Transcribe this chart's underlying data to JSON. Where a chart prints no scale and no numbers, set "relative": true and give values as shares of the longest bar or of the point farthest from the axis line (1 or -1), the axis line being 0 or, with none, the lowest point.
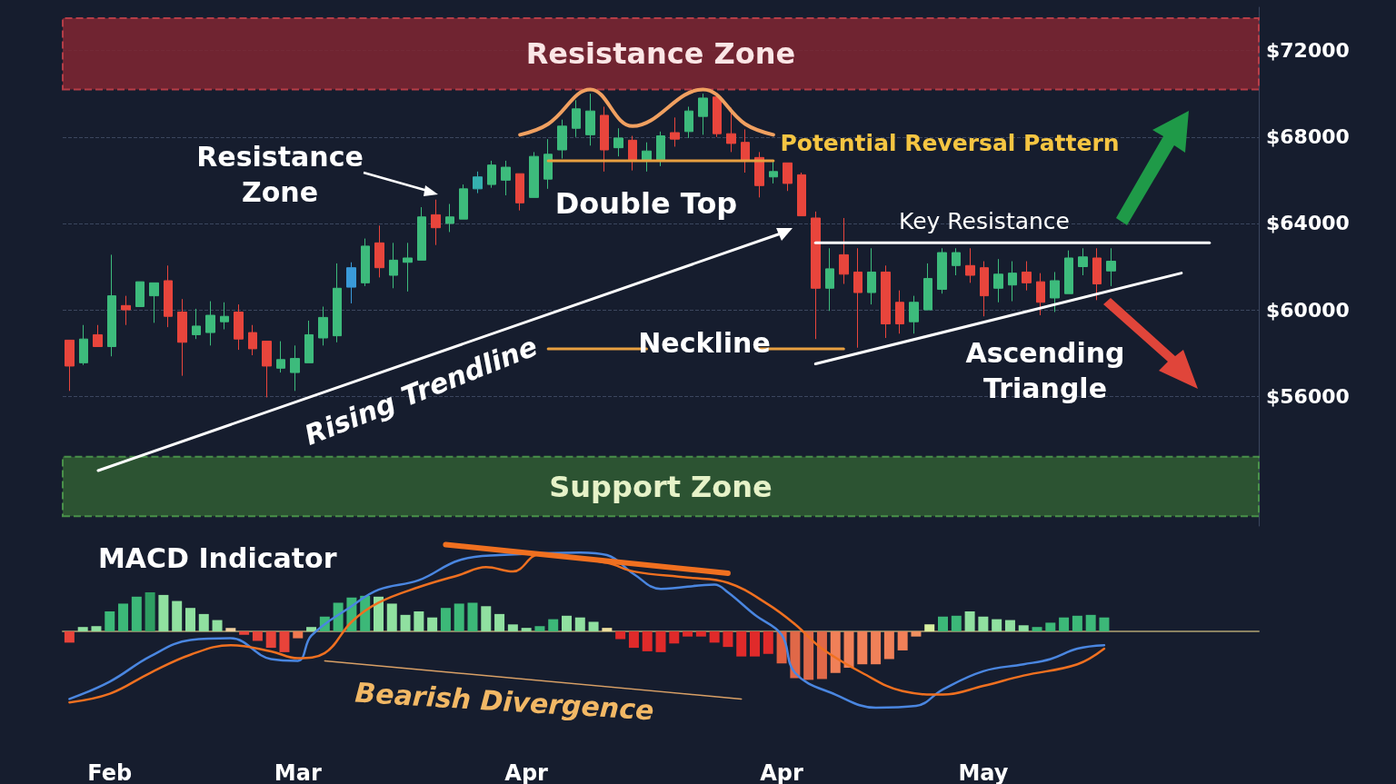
{
  "chart_data": [
    {
      "type": "candlestick",
      "categories": [
        null,
        null,
        null,
        null,
        null,
        null,
        null,
        null,
        null,
        null,
        null,
        null,
        null,
        null,
        null,
        null,
        null,
        null,
        null,
        null,
        null,
        null,
        null,
        null,
        null,
        null,
        null,
        null,
        null,
        null,
        null,
        null,
        null,
        null,
        null,
        null,
        null,
        null,
        null,
        null,
        null,
        null,
        null,
        null,
        null,
        null,
        null,
        null,
        null,
        null,
        null,
        null,
        null,
        null,
        null,
        null,
        null,
        null,
        null,
        null,
        null,
        null,
        null,
        null,
        null,
        null,
        null,
        null,
        null,
        null,
        null,
        null,
        null,
        null,
        null,
        null,
        null,
        null,
        null,
        null,
        null,
        null,
        null,
        null,
        null
      ],
      "ohlc": [
        [
          58600,
          58600,
          56250,
          57400
        ],
        [
          57550,
          59300,
          57450,
          58650
        ],
        [
          58850,
          59300,
          58300,
          58300
        ],
        [
          58300,
          62550,
          57850,
          60650
        ],
        [
          60200,
          60650,
          59300,
          60000
        ],
        [
          60150,
          61300,
          60150,
          61300
        ],
        [
          60650,
          61250,
          59400,
          61250
        ],
        [
          61350,
          62050,
          59200,
          59700
        ],
        [
          59900,
          60500,
          56950,
          58500
        ],
        [
          58850,
          60050,
          58650,
          59250
        ],
        [
          58950,
          60400,
          58350,
          59750
        ],
        [
          59450,
          60350,
          59100,
          59700
        ],
        [
          59900,
          60250,
          58150,
          58650
        ],
        [
          58950,
          59300,
          57900,
          58200
        ],
        [
          58550,
          58550,
          55950,
          57400
        ],
        [
          57300,
          58550,
          57100,
          57700
        ],
        [
          57100,
          58350,
          56250,
          57750
        ],
        [
          57550,
          59500,
          57550,
          58850
        ],
        [
          58700,
          60150,
          58350,
          59650
        ],
        [
          58800,
          62150,
          58500,
          61000
        ],
        [
          61050,
          62200,
          60300,
          61950
        ],
        [
          61250,
          63300,
          61100,
          62950
        ],
        [
          63100,
          63900,
          61500,
          61950
        ],
        [
          61600,
          63100,
          61000,
          62300
        ],
        [
          62200,
          63100,
          60850,
          62400
        ],
        [
          62300,
          64750,
          62300,
          64300
        ],
        [
          64400,
          65100,
          63000,
          63800
        ],
        [
          64000,
          64900,
          63600,
          64300
        ],
        [
          64200,
          65800,
          64200,
          65600
        ],
        [
          65600,
          66400,
          65400,
          66150
        ],
        [
          65800,
          66900,
          65650,
          66700
        ],
        [
          66000,
          66900,
          65300,
          66600
        ],
        [
          66300,
          66300,
          64600,
          64950
        ],
        [
          65200,
          67300,
          65200,
          67100
        ],
        [
          66050,
          67900,
          65600,
          67200
        ],
        [
          67400,
          68800,
          67000,
          68500
        ],
        [
          68400,
          69700,
          68000,
          69300
        ],
        [
          68100,
          70000,
          67600,
          69200
        ],
        [
          69000,
          69400,
          66400,
          67400
        ],
        [
          67500,
          68400,
          67100,
          67950
        ],
        [
          67850,
          68050,
          66450,
          66950
        ],
        [
          66900,
          67750,
          66400,
          67350
        ],
        [
          66950,
          68250,
          66650,
          68050
        ],
        [
          68200,
          68900,
          67550,
          67900
        ],
        [
          68250,
          69400,
          67950,
          69200
        ],
        [
          68950,
          70000,
          68100,
          69800
        ],
        [
          69850,
          70000,
          68000,
          68150
        ],
        [
          68150,
          69350,
          67300,
          67700
        ],
        [
          67750,
          68350,
          66350,
          66900
        ],
        [
          67050,
          67300,
          65200,
          65750
        ],
        [
          66150,
          66850,
          65850,
          66400
        ],
        [
          66800,
          66800,
          65500,
          65850
        ],
        [
          66250,
          66350,
          64350,
          64350
        ],
        [
          64250,
          64550,
          58650,
          61000
        ],
        [
          61000,
          62850,
          59950,
          61900
        ],
        [
          62550,
          64250,
          61200,
          61650
        ],
        [
          61750,
          62850,
          58250,
          60800
        ],
        [
          60800,
          62850,
          60250,
          61750
        ],
        [
          61750,
          62050,
          58700,
          59350
        ],
        [
          60350,
          60900,
          58900,
          59350
        ],
        [
          59450,
          60650,
          58900,
          60350
        ],
        [
          60000,
          62150,
          60000,
          61450
        ],
        [
          60950,
          62850,
          60750,
          62650
        ],
        [
          62050,
          62850,
          61600,
          62650
        ],
        [
          62050,
          62850,
          61250,
          61600
        ],
        [
          61950,
          62250,
          59700,
          60650
        ],
        [
          61000,
          62350,
          60350,
          61650
        ],
        [
          61150,
          62250,
          60400,
          61700
        ],
        [
          61750,
          62250,
          60900,
          61250
        ],
        [
          61300,
          61700,
          59750,
          60350
        ],
        [
          60550,
          61750,
          59900,
          61350
        ],
        [
          60750,
          62750,
          60750,
          62400
        ],
        [
          62000,
          62850,
          61600,
          62450
        ],
        [
          62400,
          62850,
          60450,
          61200
        ],
        [
          61800,
          62850,
          61100,
          62250
        ],
        null,
        null,
        null,
        null,
        null,
        null,
        null,
        null,
        null,
        null
      ],
      "colors": [
        "#e8453c",
        "#3dbb7c",
        "#e8453c",
        "#3dbb7c",
        "#e8453c",
        "#3dbb7c",
        "#3dbb7c",
        "#e8453c",
        "#e8453c",
        "#3dbb7c",
        "#3dbb7c",
        "#3dbb7c",
        "#e8453c",
        "#e8453c",
        "#e8453c",
        "#3dbb7c",
        "#3dbb7c",
        "#3dbb7c",
        "#3dbb7c",
        "#3dbb7c",
        "#3a9ad9",
        "#3dbb7c",
        "#e8453c",
        "#3dbb7c",
        "#3dbb7c",
        "#3dbb7c",
        "#e8453c",
        "#3dbb7c",
        "#3dbb7c",
        "#35b0b0",
        "#3dbb7c",
        "#3dbb7c",
        "#e8453c",
        "#3dbb7c",
        "#3dbb7c",
        "#3dbb7c",
        "#3dbb7c",
        "#3dbb7c",
        "#e8453c",
        "#3dbb7c",
        "#e8453c",
        "#3dbb7c",
        "#3dbb7c",
        "#e8453c",
        "#3dbb7c",
        "#3dbb7c",
        "#e8453c",
        "#e8453c",
        "#e8453c",
        "#e8453c",
        "#3dbb7c",
        "#e8453c",
        "#e8453c",
        "#e8453c",
        "#3dbb7c",
        "#e8453c",
        "#e8453c",
        "#3dbb7c",
        "#e8453c",
        "#e8453c",
        "#3dbb7c",
        "#3dbb7c",
        "#3dbb7c",
        "#3dbb7c",
        "#e8453c",
        "#e8453c",
        "#3dbb7c",
        "#3dbb7c",
        "#e8453c",
        "#e8453c",
        "#3dbb7c",
        "#3dbb7c",
        "#3dbb7c",
        "#e8453c",
        "#3dbb7c",
        null,
        null,
        null,
        null,
        null,
        null,
        null,
        null,
        null,
        null
      ],
      "series": [
        {
          "type": "line",
          "color": "#f0a060",
          "values": [
            null,
            null,
            null,
            null,
            null,
            null,
            null,
            null,
            null,
            null,
            null,
            null,
            null,
            null,
            null,
            null,
            null,
            null,
            null,
            null,
            null,
            null,
            null,
            null,
            null,
            null,
            null,
            null,
            null,
            null,
            null,
            null,
            68100,
            null,
            68600,
            null,
            null,
            70200,
            null,
            null,
            68500,
            null,
            null,
            null,
            null,
            70200,
            null,
            null,
            68600,
            null,
            68100,
            null,
            null,
            null,
            null,
            null,
            null,
            null,
            null,
            null,
            null,
            null,
            null,
            null,
            null,
            null,
            null,
            null,
            null,
            null,
            null,
            null,
            null,
            null,
            null,
            null,
            null,
            null,
            null,
            null,
            null,
            null,
            null,
            null,
            null
          ]
        },
        {
          "type": "line",
          "color": "#e8a040",
          "values": [
            null,
            null,
            null,
            null,
            null,
            null,
            null,
            null,
            null,
            null,
            null,
            null,
            null,
            null,
            null,
            null,
            null,
            null,
            null,
            null,
            null,
            null,
            null,
            null,
            null,
            null,
            null,
            null,
            null,
            null,
            null,
            null,
            null,
            null,
            66900,
            null,
            null,
            null,
            null,
            null,
            null,
            null,
            null,
            null,
            null,
            null,
            null,
            null,
            null,
            null,
            66900,
            null,
            null,
            null,
            null,
            null,
            null,
            null,
            null,
            null,
            null,
            null,
            null,
            null,
            null,
            null,
            null,
            null,
            null,
            null,
            null,
            null,
            null,
            null,
            null,
            null,
            null,
            null,
            null,
            null,
            null,
            null,
            null,
            null,
            null
          ]
        },
        {
          "type": "line",
          "color": "#e8a040",
          "values": [
            null,
            null,
            null,
            null,
            null,
            null,
            null,
            null,
            null,
            null,
            null,
            null,
            null,
            null,
            null,
            null,
            null,
            null,
            null,
            null,
            null,
            null,
            null,
            null,
            null,
            null,
            null,
            null,
            null,
            null,
            null,
            null,
            null,
            null,
            58200,
            null,
            null,
            null,
            null,
            null,
            null,
            58200,
            null,
            null,
            null,
            null,
            null,
            null,
            null,
            null,
            null,
            null,
            null,
            null,
            null,
            null,
            null,
            null,
            null,
            null,
            null,
            null,
            null,
            null,
            null,
            null,
            null,
            null,
            null,
            null,
            null,
            null,
            null,
            null,
            null,
            null,
            null,
            null,
            null,
            null,
            null,
            null,
            null,
            null,
            null
          ]
        },
        {
          "type": "line",
          "color": "#e8a040",
          "values": [
            null,
            null,
            null,
            null,
            null,
            null,
            null,
            null,
            null,
            null,
            null,
            null,
            null,
            null,
            null,
            null,
            null,
            null,
            null,
            null,
            null,
            null,
            null,
            null,
            null,
            null,
            null,
            null,
            null,
            null,
            null,
            null,
            null,
            null,
            null,
            null,
            null,
            null,
            null,
            null,
            null,
            null,
            null,
            null,
            null,
            null,
            null,
            null,
            null,
            58200,
            null,
            null,
            null,
            null,
            null,
            58200,
            null,
            null,
            null,
            null,
            null,
            null,
            null,
            null,
            null,
            null,
            null,
            null,
            null,
            null,
            null,
            null,
            null,
            null,
            null,
            null,
            null,
            null,
            null,
            null,
            null,
            null,
            null,
            null,
            null
          ]
        },
        {
          "type": "line",
          "color": "#ffffff",
          "values": [
            null,
            null,
            null,
            null,
            null,
            null,
            null,
            null,
            null,
            null,
            null,
            null,
            null,
            null,
            null,
            null,
            null,
            null,
            null,
            null,
            null,
            null,
            null,
            null,
            null,
            null,
            null,
            null,
            null,
            null,
            null,
            null,
            null,
            null,
            null,
            null,
            null,
            null,
            null,
            null,
            null,
            null,
            null,
            null,
            null,
            null,
            null,
            null,
            null,
            null,
            null,
            null,
            null,
            63100,
            null,
            null,
            null,
            null,
            null,
            null,
            null,
            null,
            null,
            null,
            null,
            null,
            null,
            null,
            null,
            null,
            null,
            null,
            null,
            null,
            null,
            null,
            null,
            null,
            null,
            null,
            null,
            63100,
            null,
            null,
            null
          ]
        },
        {
          "type": "line",
          "color": "#ffffff",
          "values": [
            null,
            null,
            null,
            null,
            null,
            null,
            null,
            null,
            null,
            null,
            null,
            null,
            null,
            null,
            null,
            null,
            null,
            null,
            null,
            null,
            null,
            null,
            null,
            null,
            null,
            null,
            null,
            null,
            null,
            null,
            null,
            null,
            null,
            null,
            null,
            null,
            null,
            null,
            null,
            null,
            null,
            null,
            null,
            null,
            null,
            null,
            null,
            null,
            null,
            null,
            null,
            null,
            null,
            57500,
            null,
            null,
            null,
            null,
            null,
            null,
            null,
            null,
            null,
            null,
            null,
            null,
            null,
            null,
            null,
            null,
            null,
            null,
            null,
            null,
            null,
            null,
            null,
            null,
            null,
            61700,
            null,
            null,
            null,
            null,
            null
          ]
        }
      ],
      "bands": [
        {
          "axis": "y",
          "from": 70200,
          "to": 73500,
          "label": "Resistance Zone",
          "color": "#7a2632"
        },
        {
          "axis": "y",
          "from": 50450,
          "to": 53200,
          "label": "Support Zone",
          "color": "#2f5a33"
        }
      ],
      "annotations": [
        "Resistance Zone",
        "Double Top",
        "Potential Reversal Pattern",
        "Key Resistance",
        "Rising Trendline",
        "Neckline",
        "Ascending Triangle"
      ],
      "ylim": [
        50000,
        74000
      ],
      "yticks": [
        {
          "value": 56000,
          "label": "$56000"
        },
        {
          "value": 60000,
          "label": "$60000"
        },
        {
          "value": 64000,
          "label": "$64000"
        },
        {
          "value": 68000,
          "label": "$68000"
        },
        {
          "value": 72000,
          "label": "$72000"
        }
      ],
      "grid": "y",
      "tick_labels": "y"
    },
    {
      "type": "bar",
      "title": "MACD Indicator",
      "relative": true,
      "tick_labels": "x",
      "categories": [
        null,
        null,
        null,
        "Feb",
        null,
        null,
        null,
        null,
        null,
        null,
        null,
        null,
        null,
        null,
        null,
        null,
        null,
        "Mar",
        null,
        null,
        null,
        null,
        null,
        null,
        null,
        null,
        null,
        null,
        null,
        null,
        null,
        null,
        null,
        null,
        "Apr",
        null,
        null,
        null,
        null,
        null,
        null,
        null,
        null,
        null,
        null,
        null,
        null,
        null,
        null,
        null,
        null,
        null,
        null,
        "Apr",
        null,
        null,
        null,
        null,
        null,
        null,
        null,
        null,
        null,
        null,
        null,
        null,
        null,
        null,
        "May",
        null,
        null,
        null,
        null,
        null,
        null,
        null,
        null,
        null,
        null,
        null,
        null,
        null,
        null,
        null,
        null,
        null,
        null,
        null,
        null
      ],
      "series": [
        {
          "type": "bar",
          "values": [
            -0.13,
            0.05,
            0.06,
            0.23,
            0.32,
            0.4,
            0.45,
            0.42,
            0.35,
            0.27,
            0.2,
            0.13,
            0.04,
            -0.04,
            -0.11,
            -0.19,
            -0.24,
            -0.08,
            0.05,
            0.17,
            0.33,
            0.39,
            0.41,
            0.4,
            0.32,
            0.19,
            0.23,
            0.16,
            0.27,
            0.32,
            0.33,
            0.29,
            0.2,
            0.08,
            0.04,
            0.06,
            0.14,
            0.18,
            0.16,
            0.11,
            0.04,
            -0.09,
            -0.19,
            -0.23,
            -0.24,
            -0.14,
            -0.06,
            -0.06,
            -0.13,
            -0.18,
            -0.29,
            -0.29,
            -0.26,
            -0.37,
            -0.54,
            -0.56,
            -0.55,
            -0.48,
            -0.42,
            -0.38,
            -0.38,
            -0.32,
            -0.22,
            -0.06,
            0.08,
            0.17,
            0.18,
            0.23,
            0.17,
            0.14,
            0.13,
            0.07,
            0.05,
            0.1,
            0.16,
            0.18,
            0.19,
            0.16,
            null,
            null,
            null,
            null,
            null,
            null,
            null,
            null,
            null,
            null,
            null
          ],
          "colors": [
            "#e8433a",
            "#90e0a0",
            "#90e0a0",
            "#3cb878",
            "#3cb878",
            "#3cb878",
            "#2e9e62",
            "#90e0a0",
            "#90e0a0",
            "#90e0a0",
            "#90e0a0",
            "#90e0a0",
            "#f0d0a0",
            "#e8433a",
            "#e8433a",
            "#e8433a",
            "#e8433a",
            "#f07850",
            "#90e0a0",
            "#3cb878",
            "#3cb878",
            "#3cb878",
            "#3cb878",
            "#90e0a0",
            "#90e0a0",
            "#90e0a0",
            "#90e0a0",
            "#90e0a0",
            "#3cb878",
            "#3cb878",
            "#3cb878",
            "#90e0a0",
            "#90e0a0",
            "#90e0a0",
            "#90e0a0",
            "#3cb878",
            "#3cb878",
            "#90e0a0",
            "#90e0a0",
            "#90e0a0",
            "#f0e0a0",
            "#e02a2a",
            "#e02a2a",
            "#e02a2a",
            "#e02a2a",
            "#e02a2a",
            "#e02a2a",
            "#e02a2a",
            "#e02a2a",
            "#e02a2a",
            "#e02a2a",
            "#e02a2a",
            "#e02a2a",
            "#e06040",
            "#e06848",
            "#e06848",
            "#e06848",
            "#f08058",
            "#f08058",
            "#f08058",
            "#f08058",
            "#f08058",
            "#f08058",
            "#f09060",
            "#d8f0a0",
            "#3cb878",
            "#3cb878",
            "#90e0a0",
            "#90e0a0",
            "#90e0a0",
            "#90e0a0",
            "#90e0a0",
            "#3cb878",
            "#3cb878",
            "#3cb878",
            "#3cb878",
            "#3cb878",
            "#3cb878",
            null,
            null,
            null,
            null,
            null,
            null,
            null,
            null,
            null,
            null,
            null
          ]
        },
        {
          "type": "line",
          "color": "#4a86e0",
          "values": [
            -0.78,
            null,
            null,
            -0.58,
            null,
            null,
            -0.29,
            null,
            null,
            -0.1,
            null,
            null,
            -0.08,
            null,
            null,
            -0.32,
            null,
            -0.34,
            -0.05,
            null,
            null,
            0.29,
            null,
            0.48,
            null,
            null,
            0.59,
            null,
            null,
            0.82,
            null,
            null,
            0.88,
            null,
            null,
            null,
            null,
            null,
            0.91,
            null,
            0.88,
            null,
            0.66,
            null,
            0.49,
            null,
            null,
            null,
            0.54,
            0.45,
            null,
            0.19,
            null,
            -0.04,
            -0.48,
            null,
            null,
            -0.73,
            null,
            null,
            -0.88,
            null,
            null,
            -0.86,
            null,
            -0.67,
            null,
            null,
            -0.46,
            null,
            null,
            -0.38,
            null,
            -0.32,
            null,
            -0.2,
            null,
            -0.16,
            null,
            null,
            null,
            null,
            null,
            null,
            null,
            null,
            null,
            null,
            null
          ]
        },
        {
          "type": "line",
          "color": "#f07020",
          "values": [
            -0.82,
            null,
            null,
            -0.72,
            null,
            null,
            -0.48,
            null,
            null,
            -0.27,
            null,
            null,
            -0.16,
            null,
            null,
            -0.23,
            null,
            -0.31,
            null,
            -0.25,
            null,
            0.11,
            null,
            0.33,
            null,
            null,
            0.51,
            null,
            null,
            0.65,
            null,
            0.74,
            null,
            0.69,
            null,
            0.89,
            null,
            null,
            null,
            null,
            0.79,
            null,
            0.69,
            null,
            null,
            null,
            0.62,
            null,
            null,
            0.56,
            null,
            null,
            0.31,
            null,
            0.08,
            null,
            -0.2,
            null,
            null,
            -0.48,
            null,
            null,
            -0.69,
            null,
            null,
            -0.73,
            null,
            null,
            -0.63,
            null,
            null,
            -0.51,
            null,
            null,
            null,
            -0.38,
            null,
            -0.2,
            null,
            null,
            null,
            null,
            null,
            null,
            null,
            null,
            null,
            null,
            null
          ]
        },
        {
          "type": "line",
          "color": "#f07020",
          "values": [
            null,
            null,
            null,
            null,
            null,
            null,
            null,
            null,
            null,
            null,
            null,
            null,
            null,
            null,
            null,
            null,
            null,
            null,
            null,
            null,
            null,
            null,
            null,
            null,
            null,
            null,
            null,
            null,
            1.0,
            null,
            null,
            null,
            null,
            null,
            null,
            null,
            null,
            null,
            null,
            null,
            null,
            null,
            null,
            null,
            null,
            null,
            null,
            null,
            null,
            0.67,
            null,
            null,
            null,
            null,
            null,
            null,
            null,
            null,
            null,
            null,
            null,
            null,
            null,
            null,
            null,
            null,
            null,
            null,
            null,
            null,
            null,
            null,
            null,
            null,
            null,
            null,
            null,
            null,
            null,
            null,
            null,
            null,
            null,
            null,
            null,
            null,
            null,
            null,
            null
          ]
        },
        {
          "type": "line",
          "color": "#d9a066",
          "values": [
            null,
            null,
            null,
            null,
            null,
            null,
            null,
            null,
            null,
            null,
            null,
            null,
            null,
            null,
            null,
            null,
            null,
            null,
            null,
            -0.34,
            null,
            null,
            null,
            null,
            null,
            null,
            null,
            null,
            null,
            null,
            null,
            null,
            null,
            null,
            null,
            null,
            null,
            null,
            null,
            null,
            null,
            null,
            null,
            null,
            null,
            null,
            null,
            null,
            null,
            null,
            -0.78,
            null,
            null,
            null,
            null,
            null,
            null,
            null,
            null,
            null,
            null,
            null,
            null,
            null,
            null,
            null,
            null,
            null,
            null,
            null,
            null,
            null,
            null,
            null,
            null,
            null,
            null,
            null,
            null,
            null,
            null,
            null,
            null,
            null,
            null,
            null,
            null,
            null,
            null
          ]
        }
      ],
      "annotations": [
        "Bearish Divergence"
      ]
    }
  ]
}
